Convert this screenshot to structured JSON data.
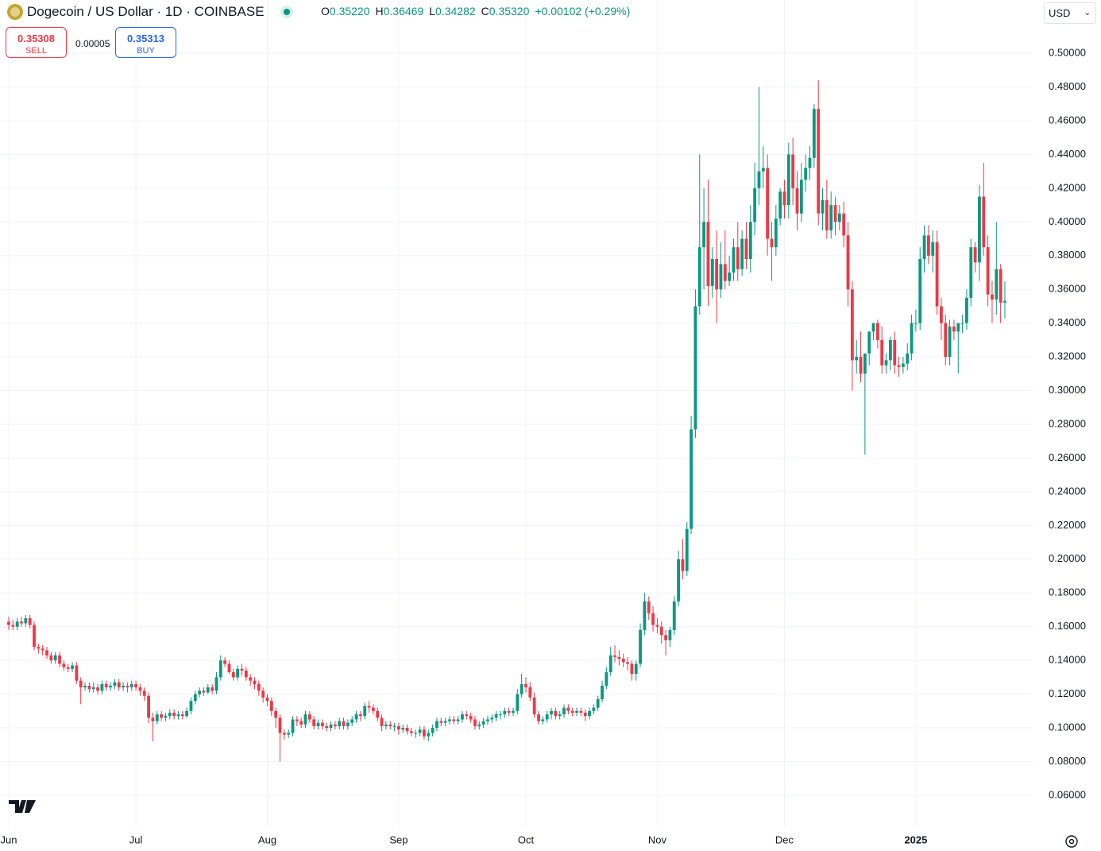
{
  "header": {
    "title": "Dogecoin / US Dollar · 1D · COINBASE",
    "ohlc": [
      {
        "key": "O",
        "value": "0.35220"
      },
      {
        "key": "H",
        "value": "0.36469"
      },
      {
        "key": "L",
        "value": "0.34282"
      },
      {
        "key": "C",
        "value": "0.35320"
      }
    ],
    "change": "+0.00102 (+0.29%)",
    "sell": {
      "price": "0.35308",
      "label": "SELL"
    },
    "spread": "0.00005",
    "buy": {
      "price": "0.35313",
      "label": "BUY"
    },
    "currency": "USD"
  },
  "chart_data": {
    "type": "candlestick",
    "up_color": "#089981",
    "down_color": "#f23645",
    "grid": true,
    "ylim": [
      0.0416,
      0.5316
    ],
    "yticks": [
      {
        "value": 0.06,
        "label": "0.06000"
      },
      {
        "value": 0.08,
        "label": "0.08000"
      },
      {
        "value": 0.1,
        "label": "0.10000"
      },
      {
        "value": 0.12,
        "label": "0.12000"
      },
      {
        "value": 0.14,
        "label": "0.14000"
      },
      {
        "value": 0.16,
        "label": "0.16000"
      },
      {
        "value": 0.18,
        "label": "0.18000"
      },
      {
        "value": 0.2,
        "label": "0.20000"
      },
      {
        "value": 0.22,
        "label": "0.22000"
      },
      {
        "value": 0.24,
        "label": "0.24000"
      },
      {
        "value": 0.26,
        "label": "0.26000"
      },
      {
        "value": 0.28,
        "label": "0.28000"
      },
      {
        "value": 0.3,
        "label": "0.30000"
      },
      {
        "value": 0.32,
        "label": "0.32000"
      },
      {
        "value": 0.34,
        "label": "0.34000"
      },
      {
        "value": 0.36,
        "label": "0.36000"
      },
      {
        "value": 0.38,
        "label": "0.38000"
      },
      {
        "value": 0.4,
        "label": "0.40000"
      },
      {
        "value": 0.42,
        "label": "0.42000"
      },
      {
        "value": 0.44,
        "label": "0.44000"
      },
      {
        "value": 0.46,
        "label": "0.46000"
      },
      {
        "value": 0.48,
        "label": "0.48000"
      },
      {
        "value": 0.5,
        "label": "0.50000"
      }
    ],
    "categories": [
      "Jun",
      null,
      null,
      null,
      null,
      null,
      null,
      null,
      null,
      null,
      null,
      null,
      null,
      null,
      null,
      null,
      null,
      null,
      null,
      null,
      null,
      null,
      null,
      null,
      null,
      null,
      null,
      null,
      null,
      null,
      "Jul",
      null,
      null,
      null,
      null,
      null,
      null,
      null,
      null,
      null,
      null,
      null,
      null,
      null,
      null,
      null,
      null,
      null,
      null,
      null,
      null,
      null,
      null,
      null,
      null,
      null,
      null,
      null,
      null,
      null,
      null,
      "Aug",
      null,
      null,
      null,
      null,
      null,
      null,
      null,
      null,
      null,
      null,
      null,
      null,
      null,
      null,
      null,
      null,
      null,
      null,
      null,
      null,
      null,
      null,
      null,
      null,
      null,
      null,
      null,
      null,
      null,
      null,
      "Sep",
      null,
      null,
      null,
      null,
      null,
      null,
      null,
      null,
      null,
      null,
      null,
      null,
      null,
      null,
      null,
      null,
      null,
      null,
      null,
      null,
      null,
      null,
      null,
      null,
      null,
      null,
      null,
      null,
      null,
      "Oct",
      null,
      null,
      null,
      null,
      null,
      null,
      null,
      null,
      null,
      null,
      null,
      null,
      null,
      null,
      null,
      null,
      null,
      null,
      null,
      null,
      null,
      null,
      null,
      null,
      null,
      null,
      null,
      null,
      null,
      null,
      "Nov",
      null,
      null,
      null,
      null,
      null,
      null,
      null,
      null,
      null,
      null,
      null,
      null,
      null,
      null,
      null,
      null,
      null,
      null,
      null,
      null,
      null,
      null,
      null,
      null,
      null,
      null,
      null,
      null,
      null,
      "Dec",
      null,
      null,
      null,
      null,
      null,
      null,
      null,
      null,
      null,
      null,
      null,
      null,
      null,
      null,
      null,
      null,
      null,
      null,
      null,
      null,
      null,
      null,
      null,
      null,
      null,
      null,
      null,
      null,
      null,
      null,
      "2025",
      null,
      null,
      null,
      null,
      null,
      null,
      null,
      null,
      null,
      null,
      null,
      null,
      null,
      null,
      null,
      null,
      null,
      null,
      null,
      null,
      null
    ],
    "open": [
      0.163,
      0.161,
      0.16,
      0.163,
      0.162,
      0.165,
      0.161,
      0.148,
      0.147,
      0.146,
      0.143,
      0.14,
      0.143,
      0.138,
      0.136,
      0.135,
      0.137,
      0.128,
      0.124,
      0.125,
      0.123,
      0.124,
      0.122,
      0.126,
      0.124,
      0.125,
      0.127,
      0.124,
      0.125,
      0.124,
      0.126,
      0.124,
      0.122,
      0.119,
      0.106,
      0.104,
      0.108,
      0.106,
      0.107,
      0.109,
      0.107,
      0.108,
      0.107,
      0.11,
      0.116,
      0.12,
      0.122,
      0.121,
      0.124,
      0.122,
      0.13,
      0.14,
      0.138,
      0.133,
      0.13,
      0.135,
      0.134,
      0.13,
      0.128,
      0.126,
      0.122,
      0.118,
      0.116,
      0.11,
      0.106,
      0.097,
      0.096,
      0.097,
      0.105,
      0.104,
      0.102,
      0.108,
      0.105,
      0.101,
      0.103,
      0.101,
      0.1,
      0.102,
      0.101,
      0.104,
      0.101,
      0.103,
      0.105,
      0.108,
      0.107,
      0.113,
      0.112,
      0.11,
      0.106,
      0.101,
      0.102,
      0.101,
      0.101,
      0.099,
      0.1,
      0.098,
      0.097,
      0.097,
      0.099,
      0.095,
      0.097,
      0.1,
      0.104,
      0.103,
      0.104,
      0.105,
      0.104,
      0.105,
      0.108,
      0.107,
      0.105,
      0.101,
      0.102,
      0.104,
      0.105,
      0.106,
      0.108,
      0.108,
      0.11,
      0.109,
      0.11,
      0.12,
      0.126,
      0.124,
      0.118,
      0.108,
      0.104,
      0.105,
      0.108,
      0.11,
      0.107,
      0.108,
      0.112,
      0.11,
      0.109,
      0.11,
      0.109,
      0.107,
      0.11,
      0.112,
      0.117,
      0.125,
      0.133,
      0.143,
      0.142,
      0.141,
      0.139,
      0.138,
      0.132,
      0.138,
      0.158,
      0.175,
      0.168,
      0.161,
      0.16,
      0.155,
      0.152,
      0.158,
      0.175,
      0.2,
      0.193,
      0.218,
      0.277,
      0.35,
      0.385,
      0.4,
      0.362,
      0.378,
      0.36,
      0.375,
      0.365,
      0.37,
      0.385,
      0.372,
      0.39,
      0.378,
      0.4,
      0.42,
      0.43,
      0.432,
      0.39,
      0.385,
      0.402,
      0.418,
      0.41,
      0.44,
      0.42,
      0.405,
      0.425,
      0.432,
      0.438,
      0.467,
      0.405,
      0.413,
      0.395,
      0.41,
      0.4,
      0.405,
      0.392,
      0.36,
      0.318,
      0.32,
      0.31,
      0.322,
      0.335,
      0.34,
      0.33,
      0.315,
      0.318,
      0.33,
      0.315,
      0.314,
      0.316,
      0.322,
      0.34,
      0.34,
      0.378,
      0.392,
      0.38,
      0.388,
      0.35,
      0.34,
      0.32,
      0.338,
      0.335,
      0.34,
      0.34,
      0.355,
      0.385,
      0.376,
      0.415,
      0.385,
      0.357,
      0.354,
      0.372,
      0.3522
    ],
    "high": [
      0.166,
      0.164,
      0.165,
      0.166,
      0.167,
      0.167,
      0.163,
      0.15,
      0.149,
      0.148,
      0.145,
      0.145,
      0.145,
      0.14,
      0.138,
      0.139,
      0.139,
      0.13,
      0.127,
      0.127,
      0.127,
      0.126,
      0.128,
      0.128,
      0.127,
      0.129,
      0.129,
      0.127,
      0.127,
      0.128,
      0.128,
      0.126,
      0.124,
      0.121,
      0.109,
      0.11,
      0.11,
      0.109,
      0.111,
      0.111,
      0.11,
      0.11,
      0.112,
      0.118,
      0.122,
      0.124,
      0.124,
      0.126,
      0.126,
      0.133,
      0.143,
      0.142,
      0.14,
      0.135,
      0.137,
      0.138,
      0.136,
      0.132,
      0.13,
      0.128,
      0.124,
      0.12,
      0.118,
      0.112,
      0.108,
      0.099,
      0.099,
      0.107,
      0.107,
      0.106,
      0.11,
      0.11,
      0.107,
      0.105,
      0.105,
      0.103,
      0.104,
      0.104,
      0.106,
      0.106,
      0.105,
      0.107,
      0.11,
      0.11,
      0.115,
      0.116,
      0.114,
      0.112,
      0.108,
      0.104,
      0.104,
      0.103,
      0.103,
      0.102,
      0.102,
      0.1,
      0.099,
      0.101,
      0.101,
      0.099,
      0.102,
      0.106,
      0.106,
      0.106,
      0.107,
      0.107,
      0.107,
      0.11,
      0.11,
      0.109,
      0.107,
      0.104,
      0.106,
      0.107,
      0.108,
      0.11,
      0.11,
      0.112,
      0.112,
      0.112,
      0.123,
      0.132,
      0.13,
      0.127,
      0.121,
      0.11,
      0.107,
      0.11,
      0.112,
      0.112,
      0.11,
      0.114,
      0.114,
      0.112,
      0.112,
      0.112,
      0.111,
      0.112,
      0.114,
      0.119,
      0.128,
      0.136,
      0.148,
      0.149,
      0.146,
      0.144,
      0.142,
      0.14,
      0.14,
      0.162,
      0.18,
      0.178,
      0.172,
      0.165,
      0.163,
      0.158,
      0.16,
      0.178,
      0.205,
      0.212,
      0.222,
      0.285,
      0.36,
      0.44,
      0.42,
      0.425,
      0.385,
      0.395,
      0.388,
      0.395,
      0.38,
      0.39,
      0.4,
      0.395,
      0.4,
      0.41,
      0.435,
      0.48,
      0.445,
      0.44,
      0.4,
      0.41,
      0.42,
      0.425,
      0.447,
      0.45,
      0.43,
      0.435,
      0.44,
      0.445,
      0.47,
      0.484,
      0.42,
      0.425,
      0.418,
      0.415,
      0.41,
      0.412,
      0.4,
      0.365,
      0.33,
      0.335,
      0.322,
      0.335,
      0.34,
      0.342,
      0.338,
      0.322,
      0.332,
      0.335,
      0.32,
      0.32,
      0.328,
      0.345,
      0.348,
      0.385,
      0.398,
      0.398,
      0.395,
      0.395,
      0.355,
      0.345,
      0.342,
      0.342,
      0.34,
      0.345,
      0.36,
      0.39,
      0.388,
      0.422,
      0.435,
      0.392,
      0.365,
      0.4,
      0.375,
      0.36469
    ],
    "low": [
      0.158,
      0.158,
      0.158,
      0.16,
      0.16,
      0.159,
      0.146,
      0.144,
      0.143,
      0.141,
      0.138,
      0.138,
      0.136,
      0.134,
      0.133,
      0.133,
      0.126,
      0.114,
      0.122,
      0.121,
      0.121,
      0.12,
      0.12,
      0.122,
      0.122,
      0.123,
      0.122,
      0.122,
      0.121,
      0.122,
      0.122,
      0.119,
      0.116,
      0.103,
      0.092,
      0.102,
      0.104,
      0.104,
      0.105,
      0.105,
      0.105,
      0.105,
      0.106,
      0.108,
      0.114,
      0.118,
      0.119,
      0.12,
      0.12,
      0.12,
      0.128,
      0.136,
      0.132,
      0.128,
      0.128,
      0.131,
      0.128,
      0.125,
      0.123,
      0.119,
      0.115,
      0.113,
      0.107,
      0.1,
      0.08,
      0.093,
      0.094,
      0.095,
      0.101,
      0.1,
      0.1,
      0.103,
      0.099,
      0.099,
      0.099,
      0.098,
      0.098,
      0.099,
      0.099,
      0.099,
      0.099,
      0.101,
      0.103,
      0.104,
      0.105,
      0.109,
      0.108,
      0.104,
      0.098,
      0.099,
      0.099,
      0.098,
      0.096,
      0.097,
      0.096,
      0.095,
      0.094,
      0.095,
      0.093,
      0.092,
      0.095,
      0.098,
      0.101,
      0.101,
      0.102,
      0.102,
      0.102,
      0.103,
      0.105,
      0.103,
      0.099,
      0.099,
      0.1,
      0.102,
      0.103,
      0.104,
      0.105,
      0.106,
      0.107,
      0.107,
      0.108,
      0.118,
      0.121,
      0.116,
      0.106,
      0.102,
      0.102,
      0.103,
      0.105,
      0.105,
      0.105,
      0.106,
      0.108,
      0.107,
      0.107,
      0.107,
      0.104,
      0.105,
      0.108,
      0.11,
      0.115,
      0.123,
      0.131,
      0.139,
      0.137,
      0.136,
      0.134,
      0.128,
      0.128,
      0.136,
      0.155,
      0.164,
      0.157,
      0.156,
      0.15,
      0.143,
      0.148,
      0.155,
      0.172,
      0.188,
      0.19,
      0.215,
      0.272,
      0.345,
      0.36,
      0.35,
      0.355,
      0.34,
      0.355,
      0.36,
      0.362,
      0.365,
      0.365,
      0.368,
      0.372,
      0.37,
      0.392,
      0.41,
      0.42,
      0.38,
      0.365,
      0.38,
      0.398,
      0.402,
      0.402,
      0.41,
      0.395,
      0.4,
      0.418,
      0.425,
      0.432,
      0.398,
      0.395,
      0.39,
      0.39,
      0.392,
      0.395,
      0.385,
      0.35,
      0.3,
      0.31,
      0.305,
      0.262,
      0.315,
      0.33,
      0.325,
      0.31,
      0.31,
      0.312,
      0.31,
      0.308,
      0.31,
      0.312,
      0.318,
      0.335,
      0.336,
      0.37,
      0.375,
      0.37,
      0.345,
      0.33,
      0.315,
      0.315,
      0.33,
      0.31,
      0.334,
      0.336,
      0.35,
      0.37,
      0.365,
      0.38,
      0.35,
      0.34,
      0.345,
      0.34,
      0.34282
    ],
    "close": [
      0.161,
      0.16,
      0.163,
      0.162,
      0.165,
      0.161,
      0.148,
      0.147,
      0.146,
      0.143,
      0.14,
      0.143,
      0.138,
      0.136,
      0.135,
      0.137,
      0.128,
      0.124,
      0.125,
      0.123,
      0.124,
      0.122,
      0.126,
      0.124,
      0.125,
      0.127,
      0.124,
      0.125,
      0.124,
      0.126,
      0.124,
      0.122,
      0.119,
      0.106,
      0.104,
      0.108,
      0.106,
      0.107,
      0.109,
      0.107,
      0.108,
      0.107,
      0.11,
      0.116,
      0.12,
      0.122,
      0.121,
      0.124,
      0.122,
      0.13,
      0.14,
      0.138,
      0.133,
      0.13,
      0.135,
      0.134,
      0.13,
      0.128,
      0.126,
      0.122,
      0.118,
      0.116,
      0.11,
      0.106,
      0.097,
      0.096,
      0.097,
      0.105,
      0.104,
      0.102,
      0.108,
      0.105,
      0.101,
      0.103,
      0.101,
      0.1,
      0.102,
      0.101,
      0.104,
      0.101,
      0.103,
      0.105,
      0.108,
      0.107,
      0.113,
      0.112,
      0.11,
      0.106,
      0.101,
      0.102,
      0.101,
      0.101,
      0.099,
      0.1,
      0.098,
      0.097,
      0.097,
      0.099,
      0.095,
      0.097,
      0.1,
      0.104,
      0.103,
      0.104,
      0.105,
      0.104,
      0.105,
      0.108,
      0.107,
      0.105,
      0.101,
      0.102,
      0.104,
      0.105,
      0.106,
      0.108,
      0.108,
      0.11,
      0.109,
      0.11,
      0.12,
      0.126,
      0.124,
      0.118,
      0.108,
      0.104,
      0.105,
      0.108,
      0.11,
      0.107,
      0.108,
      0.112,
      0.11,
      0.109,
      0.11,
      0.109,
      0.107,
      0.11,
      0.112,
      0.117,
      0.125,
      0.133,
      0.143,
      0.142,
      0.141,
      0.139,
      0.138,
      0.132,
      0.138,
      0.158,
      0.175,
      0.168,
      0.161,
      0.16,
      0.155,
      0.152,
      0.158,
      0.175,
      0.2,
      0.193,
      0.218,
      0.277,
      0.35,
      0.385,
      0.4,
      0.362,
      0.378,
      0.36,
      0.375,
      0.365,
      0.37,
      0.385,
      0.372,
      0.39,
      0.378,
      0.4,
      0.42,
      0.43,
      0.432,
      0.39,
      0.385,
      0.402,
      0.418,
      0.41,
      0.44,
      0.42,
      0.405,
      0.425,
      0.432,
      0.438,
      0.467,
      0.405,
      0.413,
      0.395,
      0.41,
      0.4,
      0.405,
      0.392,
      0.36,
      0.318,
      0.32,
      0.31,
      0.322,
      0.335,
      0.34,
      0.33,
      0.315,
      0.318,
      0.33,
      0.315,
      0.314,
      0.316,
      0.322,
      0.34,
      0.34,
      0.378,
      0.392,
      0.38,
      0.388,
      0.35,
      0.34,
      0.32,
      0.338,
      0.335,
      0.34,
      0.34,
      0.355,
      0.385,
      0.376,
      0.415,
      0.385,
      0.357,
      0.354,
      0.372,
      0.3522,
      0.3532
    ]
  }
}
